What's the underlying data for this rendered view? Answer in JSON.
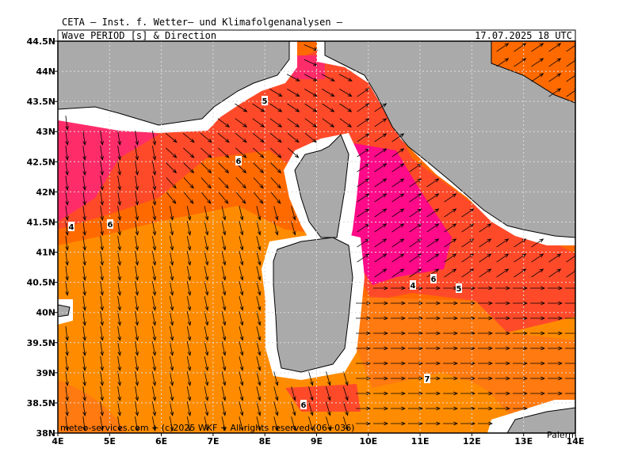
{
  "map": {
    "header": "CETA — Inst. f. Wetter— und Klimafolgenanalysen —",
    "title": "Wave_PERIOD [s] & Direction",
    "date": "17.07.2025 18 UTC",
    "footer": "meteo-services.com + (c)2025 WKF + All rights reserved (06+036)",
    "place": "Palerm",
    "xlim": [
      4,
      14
    ],
    "ylim": [
      38,
      44.5
    ],
    "xticks": [
      {
        "value": 4,
        "label": "4E"
      },
      {
        "value": 5,
        "label": "5E"
      },
      {
        "value": 6,
        "label": "6E"
      },
      {
        "value": 7,
        "label": "7E"
      },
      {
        "value": 8,
        "label": "8E"
      },
      {
        "value": 9,
        "label": "9E"
      },
      {
        "value": 10,
        "label": "10E"
      },
      {
        "value": 11,
        "label": "11E"
      },
      {
        "value": 12,
        "label": "12E"
      },
      {
        "value": 13,
        "label": "13E"
      },
      {
        "value": 14,
        "label": "14E"
      }
    ],
    "yticks": [
      {
        "value": 38,
        "label": "38N"
      },
      {
        "value": 38.5,
        "label": "38.5N"
      },
      {
        "value": 39,
        "label": "39N"
      },
      {
        "value": 39.5,
        "label": "39.5N"
      },
      {
        "value": 40,
        "label": "40N"
      },
      {
        "value": 40.5,
        "label": "40.5N"
      },
      {
        "value": 41,
        "label": "41N"
      },
      {
        "value": 41.5,
        "label": "41.5N"
      },
      {
        "value": 42,
        "label": "42N"
      },
      {
        "value": 42.5,
        "label": "42.5N"
      },
      {
        "value": 43,
        "label": "43N"
      },
      {
        "value": 43.5,
        "label": "43.5N"
      },
      {
        "value": 44,
        "label": "44N"
      },
      {
        "value": 44.5,
        "label": "44.5N"
      }
    ],
    "contour_labels": [
      5,
      6,
      4,
      6,
      4,
      6,
      5,
      7,
      6
    ]
  }
}
